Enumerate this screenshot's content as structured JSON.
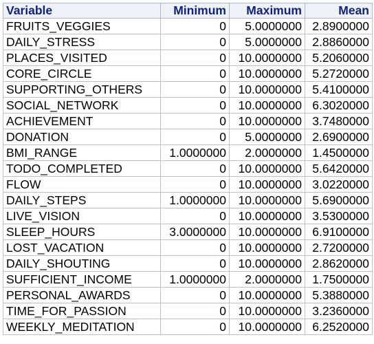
{
  "table": {
    "headers": {
      "variable": "Variable",
      "minimum": "Minimum",
      "maximum": "Maximum",
      "mean": "Mean"
    },
    "rows": [
      {
        "variable": "FRUITS_VEGGIES",
        "minimum": "0",
        "maximum": "5.0000000",
        "mean": "2.8900000"
      },
      {
        "variable": "DAILY_STRESS",
        "minimum": "0",
        "maximum": "5.0000000",
        "mean": "2.8860000"
      },
      {
        "variable": "PLACES_VISITED",
        "minimum": "0",
        "maximum": "10.0000000",
        "mean": "5.2060000"
      },
      {
        "variable": "CORE_CIRCLE",
        "minimum": "0",
        "maximum": "10.0000000",
        "mean": "5.2720000"
      },
      {
        "variable": "SUPPORTING_OTHERS",
        "minimum": "0",
        "maximum": "10.0000000",
        "mean": "5.4100000"
      },
      {
        "variable": "SOCIAL_NETWORK",
        "minimum": "0",
        "maximum": "10.0000000",
        "mean": "6.3020000"
      },
      {
        "variable": "ACHIEVEMENT",
        "minimum": "0",
        "maximum": "10.0000000",
        "mean": "3.7480000"
      },
      {
        "variable": "DONATION",
        "minimum": "0",
        "maximum": "5.0000000",
        "mean": "2.6900000"
      },
      {
        "variable": "BMI_RANGE",
        "minimum": "1.0000000",
        "maximum": "2.0000000",
        "mean": "1.4500000"
      },
      {
        "variable": "TODO_COMPLETED",
        "minimum": "0",
        "maximum": "10.0000000",
        "mean": "5.6420000"
      },
      {
        "variable": "FLOW",
        "minimum": "0",
        "maximum": "10.0000000",
        "mean": "3.0220000"
      },
      {
        "variable": "DAILY_STEPS",
        "minimum": "1.0000000",
        "maximum": "10.0000000",
        "mean": "5.6900000"
      },
      {
        "variable": "LIVE_VISION",
        "minimum": "0",
        "maximum": "10.0000000",
        "mean": "3.5300000"
      },
      {
        "variable": "SLEEP_HOURS",
        "minimum": "3.0000000",
        "maximum": "10.0000000",
        "mean": "6.9100000"
      },
      {
        "variable": "LOST_VACATION",
        "minimum": "0",
        "maximum": "10.0000000",
        "mean": "2.7200000"
      },
      {
        "variable": "DAILY_SHOUTING",
        "minimum": "0",
        "maximum": "10.0000000",
        "mean": "2.8620000"
      },
      {
        "variable": "SUFFICIENT_INCOME",
        "minimum": "1.0000000",
        "maximum": "2.0000000",
        "mean": "1.7500000"
      },
      {
        "variable": "PERSONAL_AWARDS",
        "minimum": "0",
        "maximum": "10.0000000",
        "mean": "5.3880000"
      },
      {
        "variable": "TIME_FOR_PASSION",
        "minimum": "0",
        "maximum": "10.0000000",
        "mean": "3.2360000"
      },
      {
        "variable": "WEEKLY_MEDITATION",
        "minimum": "0",
        "maximum": "10.0000000",
        "mean": "6.2520000"
      }
    ]
  },
  "colors": {
    "header_background": "#edf2f9",
    "header_text": "#112277",
    "grid_line": "#c1c1c1"
  }
}
